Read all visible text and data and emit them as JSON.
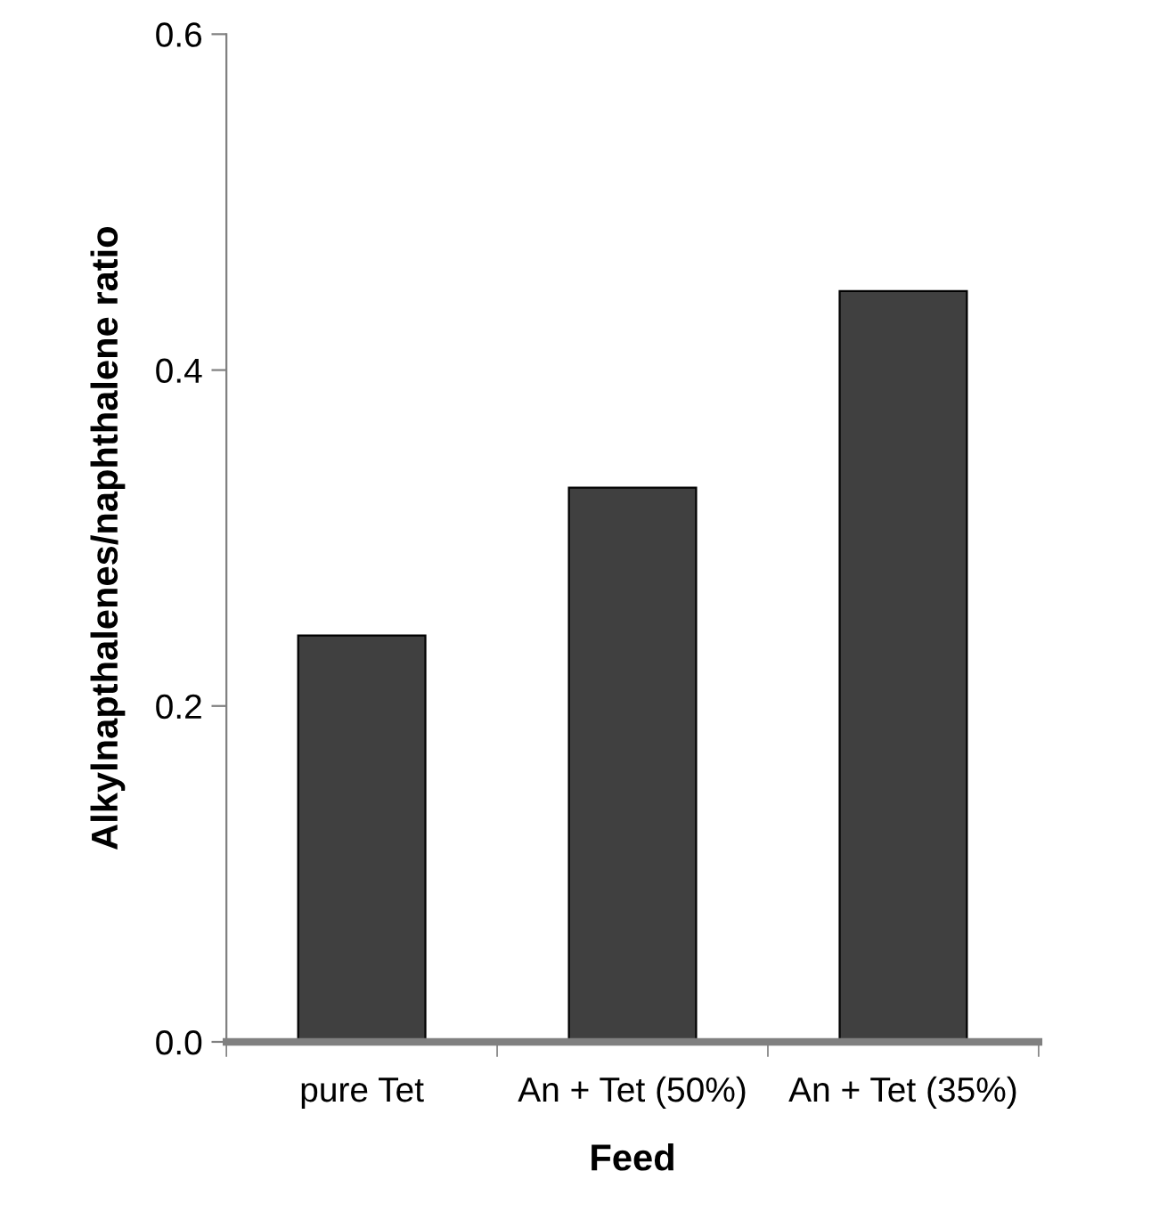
{
  "chart_data": {
    "type": "bar",
    "xlabel": "Feed",
    "ylabel": "Alkylnapthalenes/naphthalene ratio",
    "categories": [
      "pure Tet",
      "An + Tet (50%)",
      "An + Tet (35%)"
    ],
    "values": [
      0.242,
      0.33,
      0.447
    ],
    "color": "#404040",
    "ylim": [
      0,
      0.6
    ],
    "yticks": [
      {
        "value": 0,
        "label": "0.0"
      },
      {
        "value": 0.2,
        "label": "0.2"
      },
      {
        "value": 0.4,
        "label": "0.4"
      },
      {
        "value": 0.6,
        "label": "0.6"
      }
    ],
    "grid": false,
    "legend": false
  }
}
